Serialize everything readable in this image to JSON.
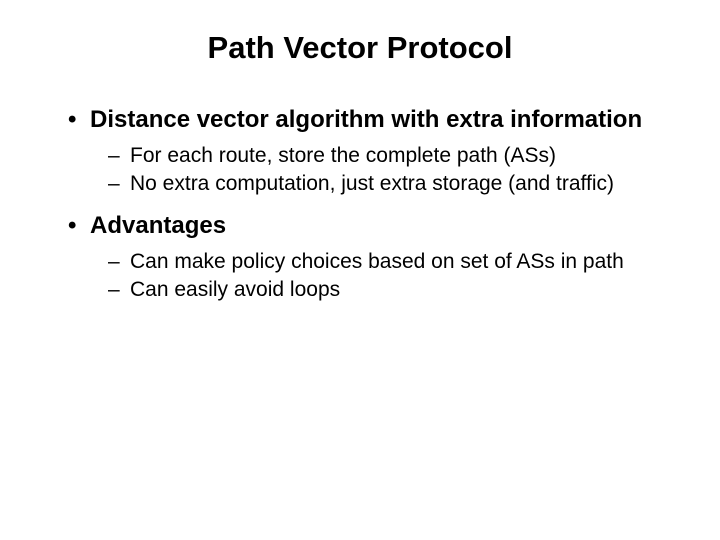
{
  "slide": {
    "title": "Path Vector Protocol",
    "title_fontsize": 31,
    "title_fontweight": "bold",
    "title_color": "#000000",
    "background_color": "#ffffff",
    "body_fontsize_main": 24,
    "body_fontsize_sub": 21,
    "body_color": "#000000",
    "bullets": [
      {
        "text": "Distance vector algorithm with extra information",
        "subs": [
          "For each route, store the complete path (ASs)",
          "No extra computation, just extra storage (and traffic)"
        ]
      },
      {
        "text": "Advantages",
        "subs": [
          "Can make policy choices based on set of ASs in path",
          "Can easily avoid loops"
        ]
      }
    ]
  }
}
